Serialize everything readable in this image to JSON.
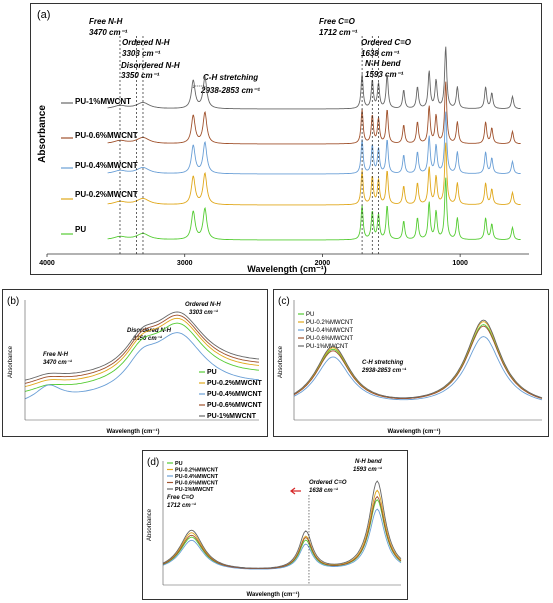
{
  "chart_data": [
    {
      "id": "a",
      "type": "line",
      "panel_label": "(a)",
      "xlabel": "Wavelength (cm⁻¹)",
      "ylabel": "Absorbance",
      "xlim": [
        4000,
        500
      ],
      "xticks": [
        "4000",
        "3000",
        "2000",
        "1000"
      ],
      "series": [
        {
          "name": "PU",
          "color": "#55cc33"
        },
        {
          "name": "PU-0.2%MWCNT",
          "color": "#e0a81c"
        },
        {
          "name": "PU-0.4%MWCNT",
          "color": "#6a9fd6"
        },
        {
          "name": "PU-0.6%MWCNT",
          "color": "#a0522d"
        },
        {
          "name": "PU-1%MWCNT",
          "color": "#666666"
        }
      ],
      "vlines": [
        3470,
        3303,
        3350,
        1712,
        1638,
        1593
      ],
      "peaks": [
        {
          "x": 3470,
          "h": 0.05
        },
        {
          "x": 3303,
          "h": 0.1
        },
        {
          "x": 2938,
          "h": 0.45
        },
        {
          "x": 2853,
          "h": 0.5
        },
        {
          "x": 1712,
          "h": 0.55
        },
        {
          "x": 1638,
          "h": 0.45
        },
        {
          "x": 1593,
          "h": 0.4
        },
        {
          "x": 1530,
          "h": 0.55
        },
        {
          "x": 1410,
          "h": 0.3
        },
        {
          "x": 1310,
          "h": 0.35
        },
        {
          "x": 1225,
          "h": 0.6
        },
        {
          "x": 1175,
          "h": 0.45
        },
        {
          "x": 1105,
          "h": 1.0
        },
        {
          "x": 1020,
          "h": 0.35
        },
        {
          "x": 815,
          "h": 0.35
        },
        {
          "x": 770,
          "h": 0.25
        },
        {
          "x": 620,
          "h": 0.2
        }
      ],
      "annotations": [
        {
          "text": "Free N-H",
          "sub": "3470 cm⁻¹"
        },
        {
          "text": "Ordered N-H",
          "sub": "3303 cm⁻¹"
        },
        {
          "text": "Disordered N-H",
          "sub": "3350 cm⁻¹"
        },
        {
          "text": "C-H stretching",
          "sub": "2938-2853 cm⁻¹"
        },
        {
          "text": "Free C=O",
          "sub": "1712 cm⁻¹"
        },
        {
          "text": "Ordered C=O",
          "sub": "1638 cm⁻¹"
        },
        {
          "text": "N-H bend",
          "sub": "1593 cm⁻¹"
        }
      ]
    },
    {
      "id": "b",
      "type": "line",
      "panel_label": "(b)",
      "xlabel": "Wavelength (cm⁻¹)",
      "ylabel": "Absorbance",
      "xlim": [
        3500,
        3200
      ],
      "series": [
        {
          "name": "PU",
          "color": "#55cc33"
        },
        {
          "name": "PU-0.2%MWCNT",
          "color": "#e0a81c"
        },
        {
          "name": "PU-0.4%MWCNT",
          "color": "#6a9fd6"
        },
        {
          "name": "PU-0.6%MWCNT",
          "color": "#a0522d"
        },
        {
          "name": "PU-1%MWCNT",
          "color": "#666666"
        }
      ],
      "annotations": [
        {
          "text": "Free N-H",
          "sub": "3470 cm⁻¹"
        },
        {
          "text": "Disordered N-H",
          "sub": "3350 cm⁻¹"
        },
        {
          "text": "Ordered N-H",
          "sub": "3303 cm⁻¹"
        }
      ]
    },
    {
      "id": "c",
      "type": "line",
      "panel_label": "(c)",
      "xlabel": "Wavelength (cm⁻¹)",
      "ylabel": "Absorbance",
      "xlim": [
        2960,
        2820
      ],
      "series": [
        {
          "name": "PU",
          "color": "#55cc33"
        },
        {
          "name": "PU-0.2%MWCNT",
          "color": "#e0a81c"
        },
        {
          "name": "PU-0.4%MWCNT",
          "color": "#6a9fd6"
        },
        {
          "name": "PU-0.6%MWCNT",
          "color": "#a0522d"
        },
        {
          "name": "PU-1%MWCNT",
          "color": "#666666"
        }
      ],
      "annotations": [
        {
          "text": "C-H stretching",
          "sub": "2938-2853 cm⁻¹"
        }
      ]
    },
    {
      "id": "d",
      "type": "line",
      "panel_label": "(d)",
      "xlabel": "Wavelength (cm⁻¹)",
      "ylabel": "Absorbance",
      "xlim": [
        1730,
        1580
      ],
      "series": [
        {
          "name": "PU",
          "color": "#55cc33"
        },
        {
          "name": "PU-0.2%MWCNT",
          "color": "#e0a81c"
        },
        {
          "name": "PU-0.4%MWCNT",
          "color": "#6a9fd6"
        },
        {
          "name": "PU-0.6%MWCNT",
          "color": "#a0522d"
        },
        {
          "name": "PU-1%MWCNT",
          "color": "#666666"
        }
      ],
      "annotations": [
        {
          "text": "Free C=O",
          "sub": "1712 cm⁻¹"
        },
        {
          "text": "Ordered C=O",
          "sub": "1638 cm⁻¹"
        },
        {
          "text": "N-H bend",
          "sub": "1593 cm⁻¹"
        }
      ]
    }
  ]
}
